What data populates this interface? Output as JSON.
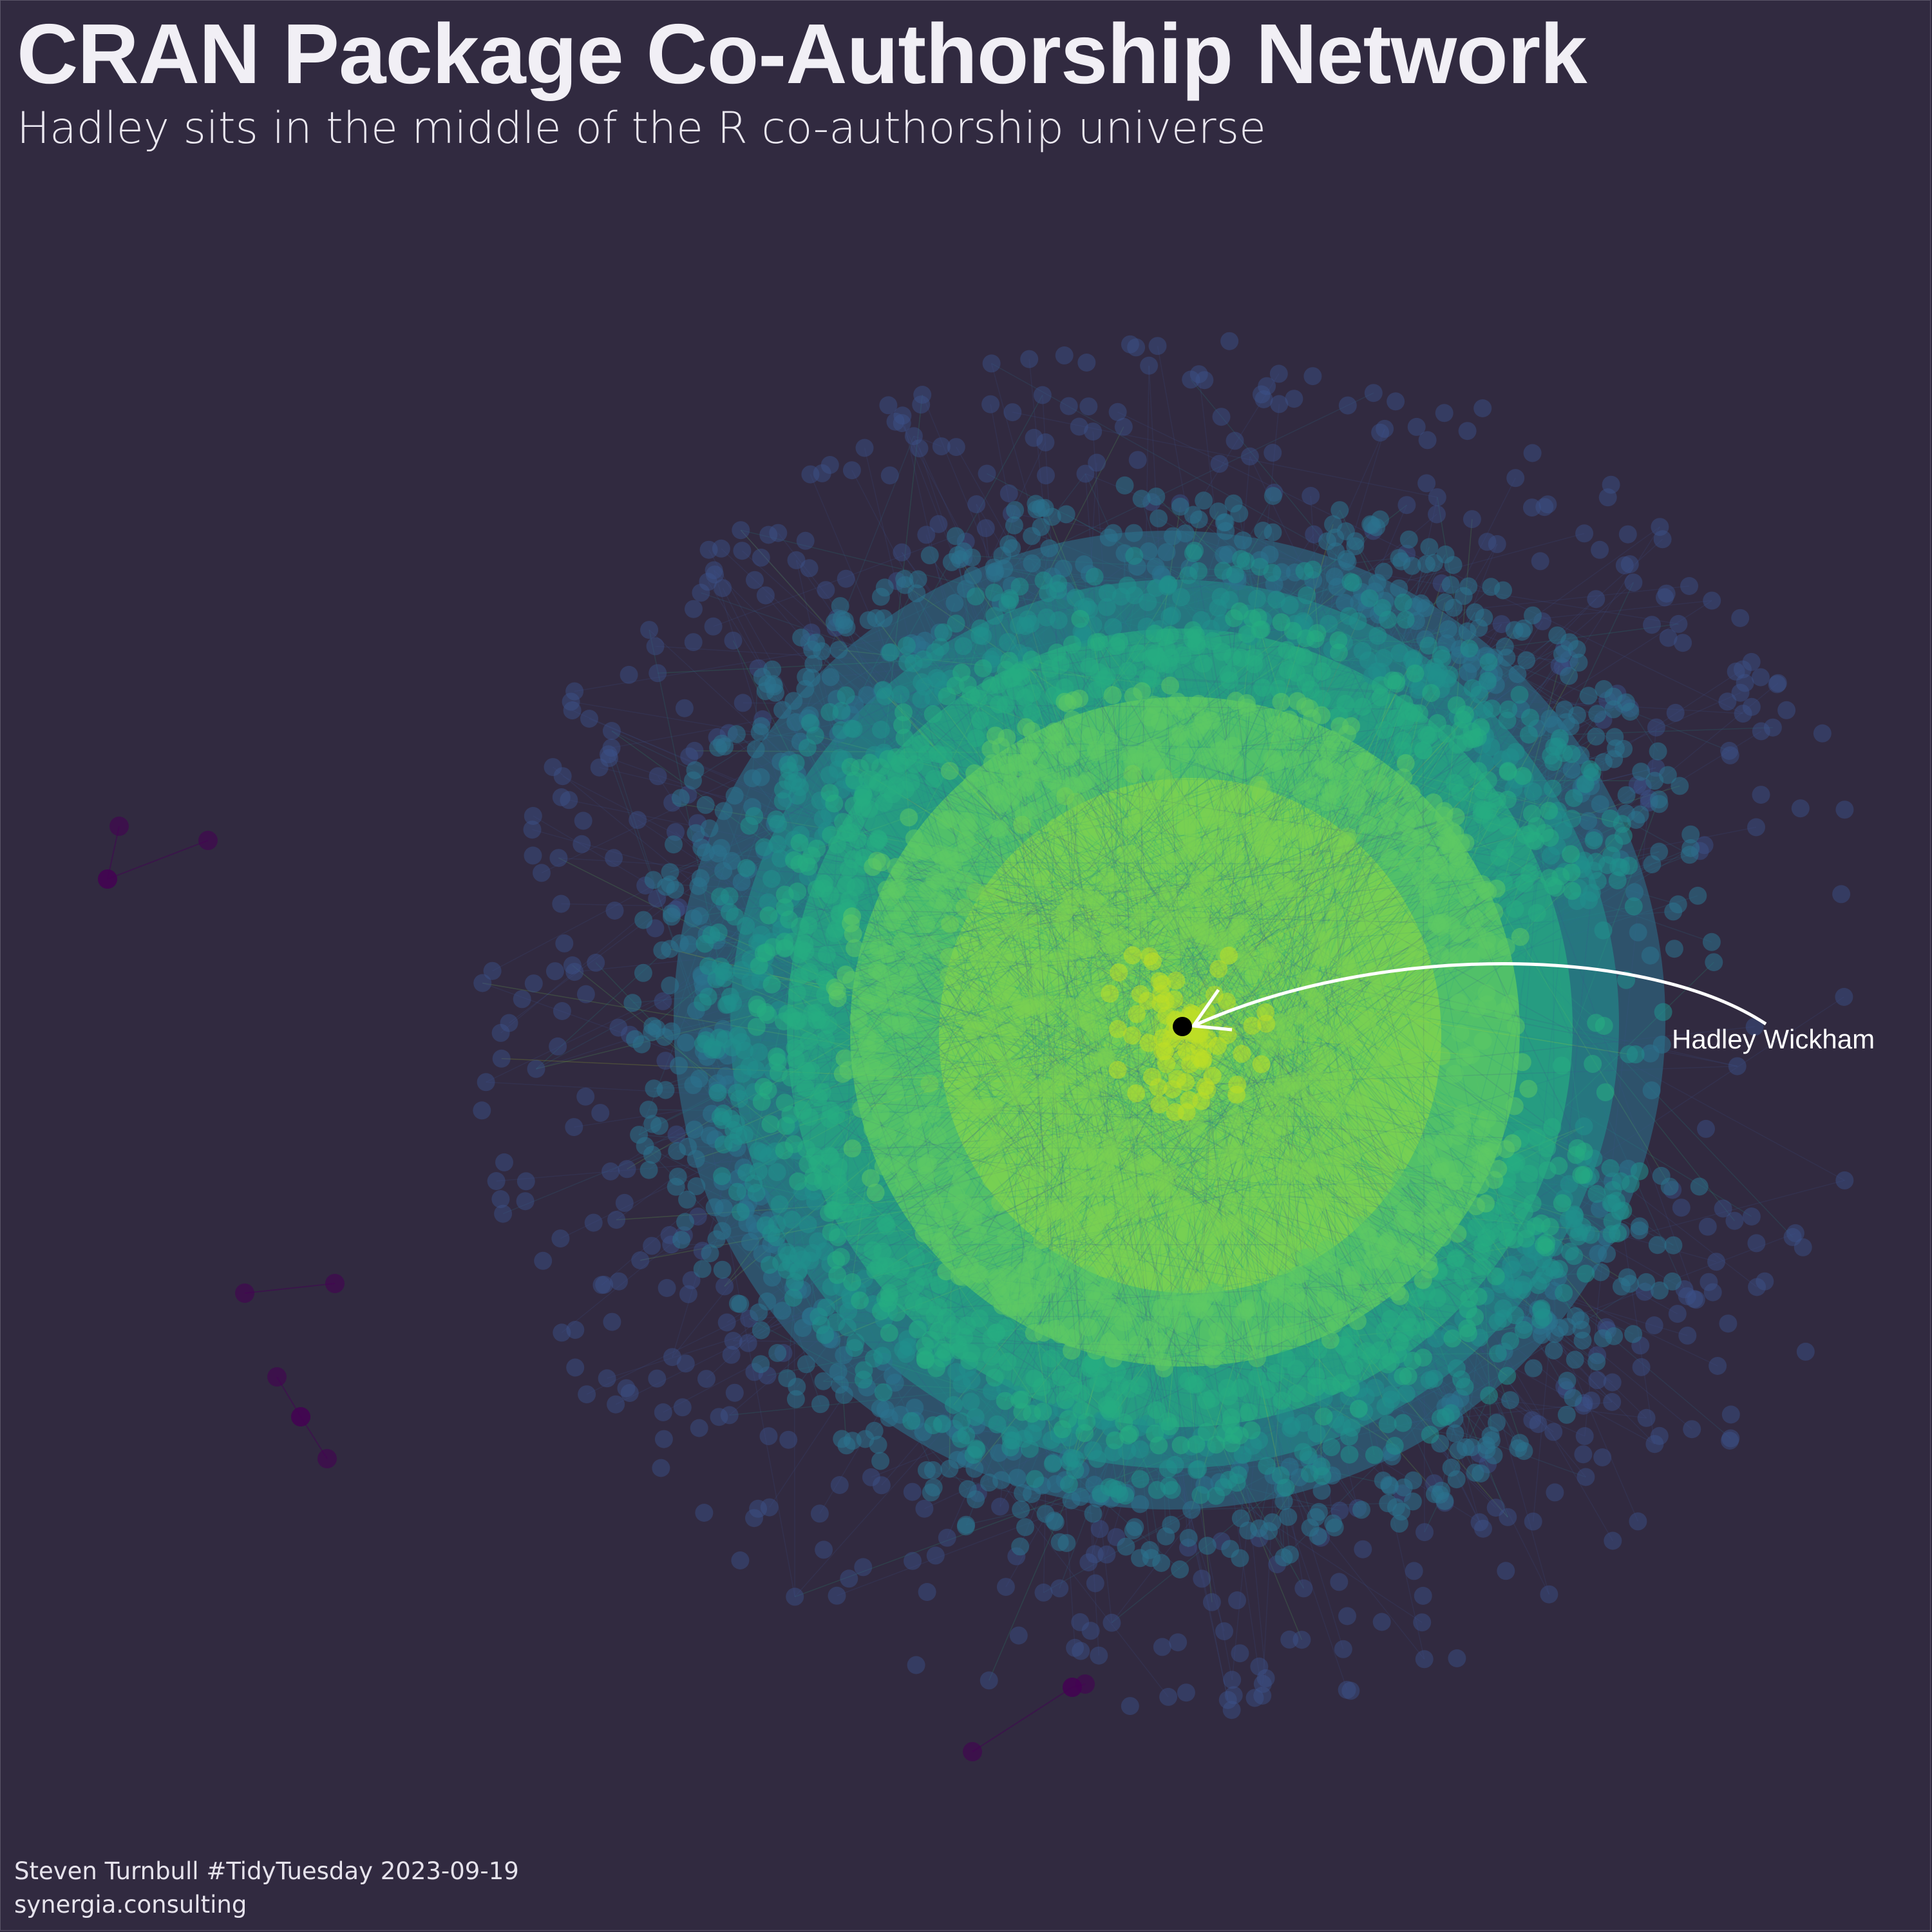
{
  "title": "CRAN Package Co-Authorship Network",
  "subtitle": "Hadley sits in the middle of the R co-authorship universe",
  "annotation": {
    "label": "Hadley Wickham"
  },
  "caption": {
    "line1": "Steven Turnbull #TidyTuesday 2023-09-19",
    "line2": "synergia.consulting"
  },
  "colors": {
    "background": "#312a40",
    "palette": [
      "#440154",
      "#3b528b",
      "#2c728e",
      "#21908c",
      "#27ad81",
      "#5dc963",
      "#7ad151",
      "#bddf26"
    ],
    "center_node": "#000000",
    "annotation": "#ffffff"
  }
}
